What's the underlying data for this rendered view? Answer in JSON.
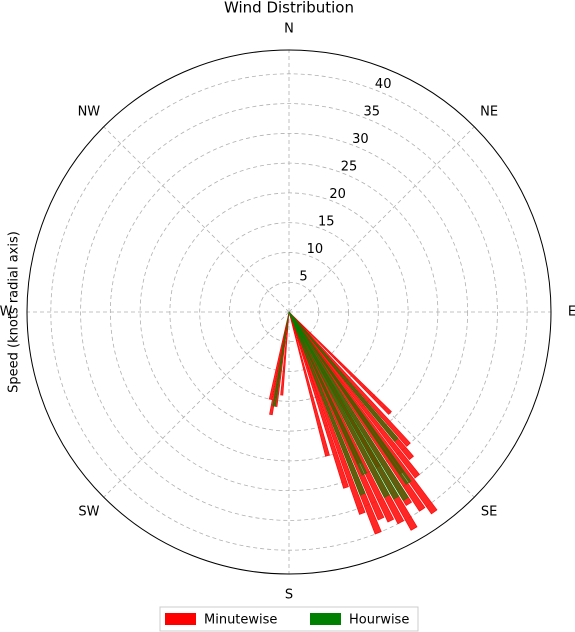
{
  "chart_data": {
    "type": "polar-bar",
    "title": "Wind Distribution",
    "ylabel": "Speed (knots radial axis)",
    "xlim": [
      0,
      360
    ],
    "xticks": [
      {
        "value": 0,
        "label": "N"
      },
      {
        "value": 45,
        "label": "NE"
      },
      {
        "value": 90,
        "label": "E"
      },
      {
        "value": 135,
        "label": "SE"
      },
      {
        "value": 180,
        "label": "S"
      },
      {
        "value": 225,
        "label": "SW"
      },
      {
        "value": 270,
        "label": "W"
      },
      {
        "value": 315,
        "label": "NW"
      }
    ],
    "ylim": [
      0,
      44
    ],
    "yticks": [
      5,
      10,
      15,
      20,
      25,
      30,
      35,
      40
    ],
    "grid": true,
    "legend": "bottom",
    "series": [
      {
        "name": "Minutewise",
        "color": "#ff0000",
        "x": [
          135,
          138,
          140,
          142,
          144,
          145,
          146,
          148,
          150,
          150,
          152,
          154,
          155,
          156,
          158,
          160,
          162,
          165,
          185,
          188,
          190,
          192
        ],
        "values": [
          24,
          30,
          32,
          35,
          41.5,
          33,
          40,
          38,
          42,
          30,
          40,
          39,
          28,
          38,
          40,
          36,
          31,
          25,
          14,
          16,
          17.5,
          15
        ]
      },
      {
        "name": "Hourwise",
        "color": "#008000",
        "x": [
          140,
          145,
          148,
          150,
          152,
          155,
          158,
          189
        ],
        "values": [
          28,
          35,
          37,
          36,
          35,
          30,
          33,
          16
        ]
      }
    ]
  }
}
